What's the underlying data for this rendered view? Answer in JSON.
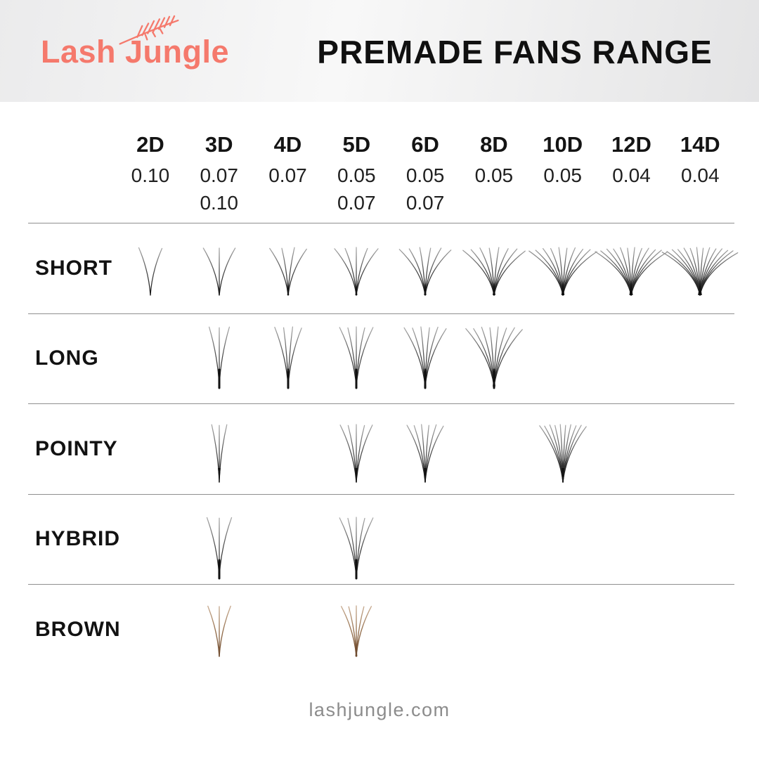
{
  "header": {
    "logo_text": "Lash Jungle",
    "title": "PREMADE FANS RANGE"
  },
  "columns": [
    {
      "label": "2D",
      "sizes": [
        "0.10"
      ]
    },
    {
      "label": "3D",
      "sizes": [
        "0.07",
        "0.10"
      ]
    },
    {
      "label": "4D",
      "sizes": [
        "0.07"
      ]
    },
    {
      "label": "5D",
      "sizes": [
        "0.05",
        "0.07"
      ]
    },
    {
      "label": "6D",
      "sizes": [
        "0.05",
        "0.07"
      ]
    },
    {
      "label": "8D",
      "sizes": [
        "0.05"
      ]
    },
    {
      "label": "10D",
      "sizes": [
        "0.05"
      ]
    },
    {
      "label": "12D",
      "sizes": [
        "0.04"
      ]
    },
    {
      "label": "14D",
      "sizes": [
        "0.04"
      ]
    }
  ],
  "rows": [
    {
      "label": "SHORT",
      "style": "short",
      "fans": [
        "2D",
        "3D",
        "4D",
        "5D",
        "6D",
        "8D",
        "10D",
        "12D",
        "14D"
      ]
    },
    {
      "label": "LONG",
      "style": "long",
      "fans": [
        "3D",
        "4D",
        "5D",
        "6D",
        "8D"
      ]
    },
    {
      "label": "POINTY",
      "style": "pointy",
      "fans": [
        "3D",
        "5D",
        "6D",
        "10D"
      ]
    },
    {
      "label": "HYBRID",
      "style": "hybrid",
      "fans": [
        "3D",
        "5D"
      ]
    },
    {
      "label": "BROWN",
      "style": "brown",
      "fans": [
        "3D",
        "5D"
      ]
    }
  ],
  "footer": {
    "website": "lashjungle.com"
  },
  "colors": {
    "accent": "#F5796C",
    "title_text": "#101010",
    "divider": "#8f8f8f",
    "footer_text": "#8c8c8c",
    "lash_dark": "#111111",
    "lash_mid": "#4a4a4a",
    "lash_light": "#ababab",
    "brown_dark": "#6e4a2e",
    "brown_mid": "#96714f",
    "brown_light": "#c9ad93"
  },
  "chart_data": {
    "type": "table",
    "title": "PREMADE FANS RANGE",
    "columns": [
      "2D",
      "3D",
      "4D",
      "5D",
      "6D",
      "8D",
      "10D",
      "12D",
      "14D"
    ],
    "column_thicknesses": [
      [
        "0.10"
      ],
      [
        "0.07",
        "0.10"
      ],
      [
        "0.07"
      ],
      [
        "0.05",
        "0.07"
      ],
      [
        "0.05",
        "0.07"
      ],
      [
        "0.05"
      ],
      [
        "0.05"
      ],
      [
        "0.04"
      ],
      [
        "0.04"
      ]
    ],
    "rows": [
      "SHORT",
      "LONG",
      "POINTY",
      "HYBRID",
      "BROWN"
    ],
    "availability": {
      "SHORT": [
        true,
        true,
        true,
        true,
        true,
        true,
        true,
        true,
        true
      ],
      "LONG": [
        false,
        true,
        true,
        true,
        true,
        true,
        false,
        false,
        false
      ],
      "POINTY": [
        false,
        true,
        false,
        true,
        true,
        false,
        true,
        false,
        false
      ],
      "HYBRID": [
        false,
        true,
        false,
        true,
        false,
        false,
        false,
        false,
        false
      ],
      "BROWN": [
        false,
        true,
        false,
        true,
        false,
        false,
        false,
        false,
        false
      ]
    }
  }
}
